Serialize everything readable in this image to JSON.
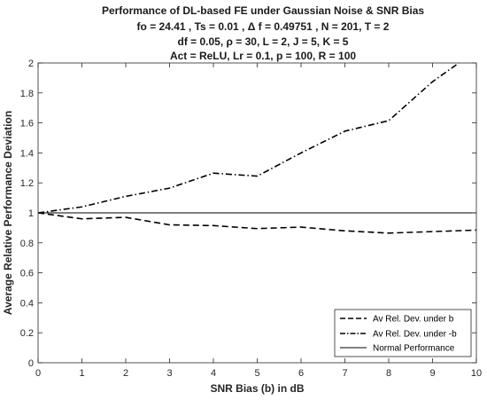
{
  "chart_data": {
    "type": "line",
    "title_lines": [
      "Performance of DL-based FE under Gaussian Noise & SNR Bias",
      "fo = 24.41 , Ts = 0.01 , Δ f = 0.49751 , N = 201, T = 2",
      "df = 0.05, ρ = 30, L = 2, J = 5, K = 5",
      "Act = ReLU, Lr = 0.1, p = 100, R = 100"
    ],
    "xlabel": "SNR Bias (b) in dB",
    "ylabel": "Average Relative Performance Deviation",
    "xlim": [
      0,
      10
    ],
    "ylim": [
      0,
      2
    ],
    "x_ticks": [
      "0",
      "1",
      "2",
      "3",
      "4",
      "5",
      "6",
      "7",
      "8",
      "9",
      "10"
    ],
    "y_ticks": [
      "0",
      "0.2",
      "0.4",
      "0.6",
      "0.8",
      "1",
      "1.2",
      "1.4",
      "1.6",
      "1.8",
      "2"
    ],
    "grid": false,
    "legend_position": "bottom-right",
    "series": [
      {
        "name": "Av Rel. Dev. under b",
        "style": "dashed",
        "color": "#000000",
        "x": [
          0,
          1,
          2,
          3,
          4,
          5,
          6,
          7,
          8,
          9,
          10
        ],
        "y": [
          1.0,
          0.96,
          0.97,
          0.92,
          0.915,
          0.895,
          0.905,
          0.88,
          0.865,
          0.875,
          0.885
        ]
      },
      {
        "name": "Av Rel. Dev. under -b",
        "style": "dashdot",
        "color": "#000000",
        "x": [
          0,
          1,
          2,
          3,
          4,
          5,
          6,
          7,
          8,
          9,
          9.6
        ],
        "y": [
          1.0,
          1.04,
          1.11,
          1.165,
          1.265,
          1.245,
          1.4,
          1.545,
          1.615,
          1.875,
          2.0
        ]
      },
      {
        "name": "Normal Performance",
        "style": "solid",
        "color": "#000000",
        "x": [
          0,
          10
        ],
        "y": [
          1,
          1
        ]
      }
    ]
  }
}
